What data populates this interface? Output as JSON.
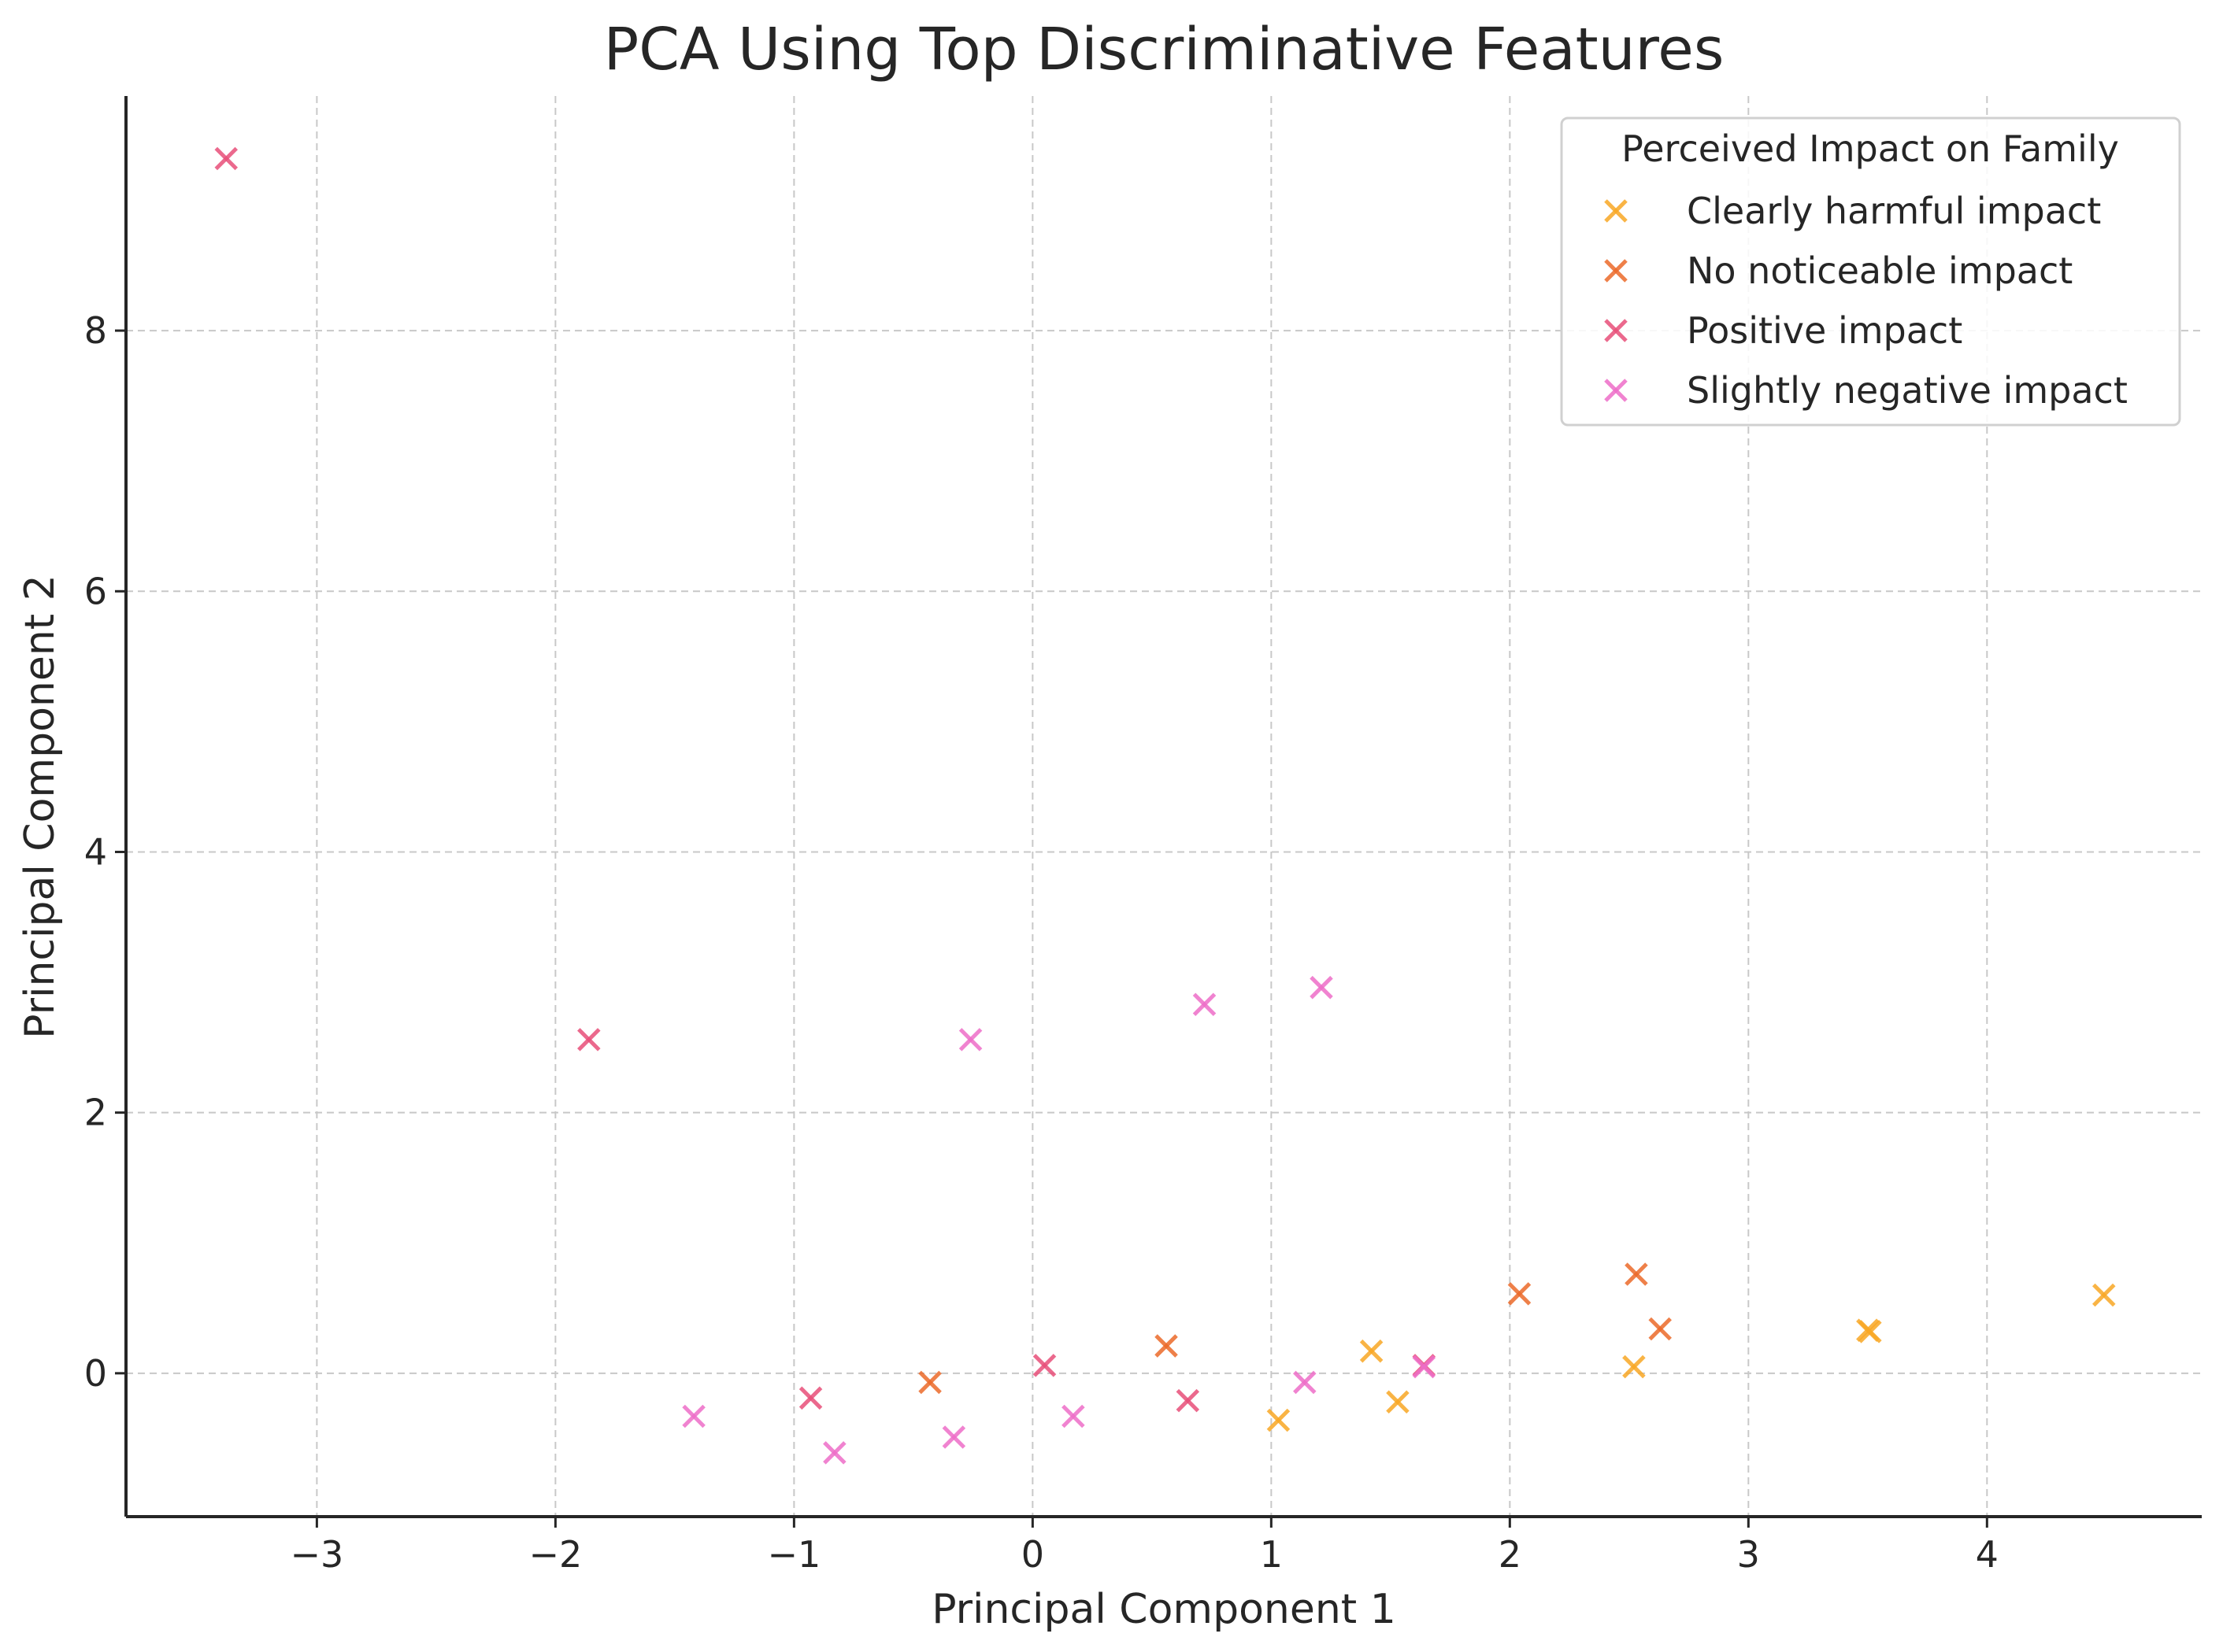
{
  "chart_data": {
    "type": "scatter",
    "title": "PCA Using Top Discriminative Features",
    "xlabel": "Principal Component 1",
    "ylabel": "Principal Component 2",
    "xlim": [
      -3.8,
      4.9
    ],
    "ylim": [
      -1.1,
      9.8
    ],
    "xticks": [
      -3,
      -2,
      -1,
      0,
      1,
      2,
      3,
      4
    ],
    "xtick_labels": [
      "−3",
      "−2",
      "−1",
      "0",
      "1",
      "2",
      "3",
      "4"
    ],
    "yticks": [
      0,
      2,
      4,
      6,
      8
    ],
    "ytick_labels": [
      "0",
      "2",
      "4",
      "6",
      "8"
    ],
    "grid": true,
    "marker": "x",
    "legend": {
      "title": "Perceived Impact on Family",
      "position": "top-right"
    },
    "series": [
      {
        "name": "Clearly harmful impact",
        "color": "#f9a825",
        "points": [
          {
            "x": 1.03,
            "y": -0.36
          },
          {
            "x": 1.42,
            "y": 0.17
          },
          {
            "x": 1.53,
            "y": -0.22
          },
          {
            "x": 2.52,
            "y": 0.05
          },
          {
            "x": 3.5,
            "y": 0.33
          },
          {
            "x": 3.51,
            "y": 0.32
          },
          {
            "x": 4.49,
            "y": 0.6
          }
        ]
      },
      {
        "name": "No noticeable impact",
        "color": "#ec6a2a",
        "points": [
          {
            "x": -0.43,
            "y": -0.07
          },
          {
            "x": 0.56,
            "y": 0.21
          },
          {
            "x": 2.04,
            "y": 0.61
          },
          {
            "x": 2.53,
            "y": 0.76
          },
          {
            "x": 2.63,
            "y": 0.34
          }
        ]
      },
      {
        "name": "Positive impact",
        "color": "#e8507a",
        "points": [
          {
            "x": -3.38,
            "y": 9.32
          },
          {
            "x": -1.86,
            "y": 2.56
          },
          {
            "x": -0.93,
            "y": -0.19
          },
          {
            "x": 0.05,
            "y": 0.06
          },
          {
            "x": 0.65,
            "y": -0.21
          },
          {
            "x": 1.64,
            "y": 0.06
          }
        ]
      },
      {
        "name": "Slightly negative impact",
        "color": "#ee6ec8",
        "points": [
          {
            "x": -1.42,
            "y": -0.33
          },
          {
            "x": -0.83,
            "y": -0.61
          },
          {
            "x": -0.33,
            "y": -0.49
          },
          {
            "x": -0.26,
            "y": 2.56
          },
          {
            "x": 0.17,
            "y": -0.33
          },
          {
            "x": 0.72,
            "y": 2.83
          },
          {
            "x": 1.14,
            "y": -0.07
          },
          {
            "x": 1.21,
            "y": 2.96
          },
          {
            "x": 1.64,
            "y": 0.05
          }
        ]
      }
    ]
  }
}
